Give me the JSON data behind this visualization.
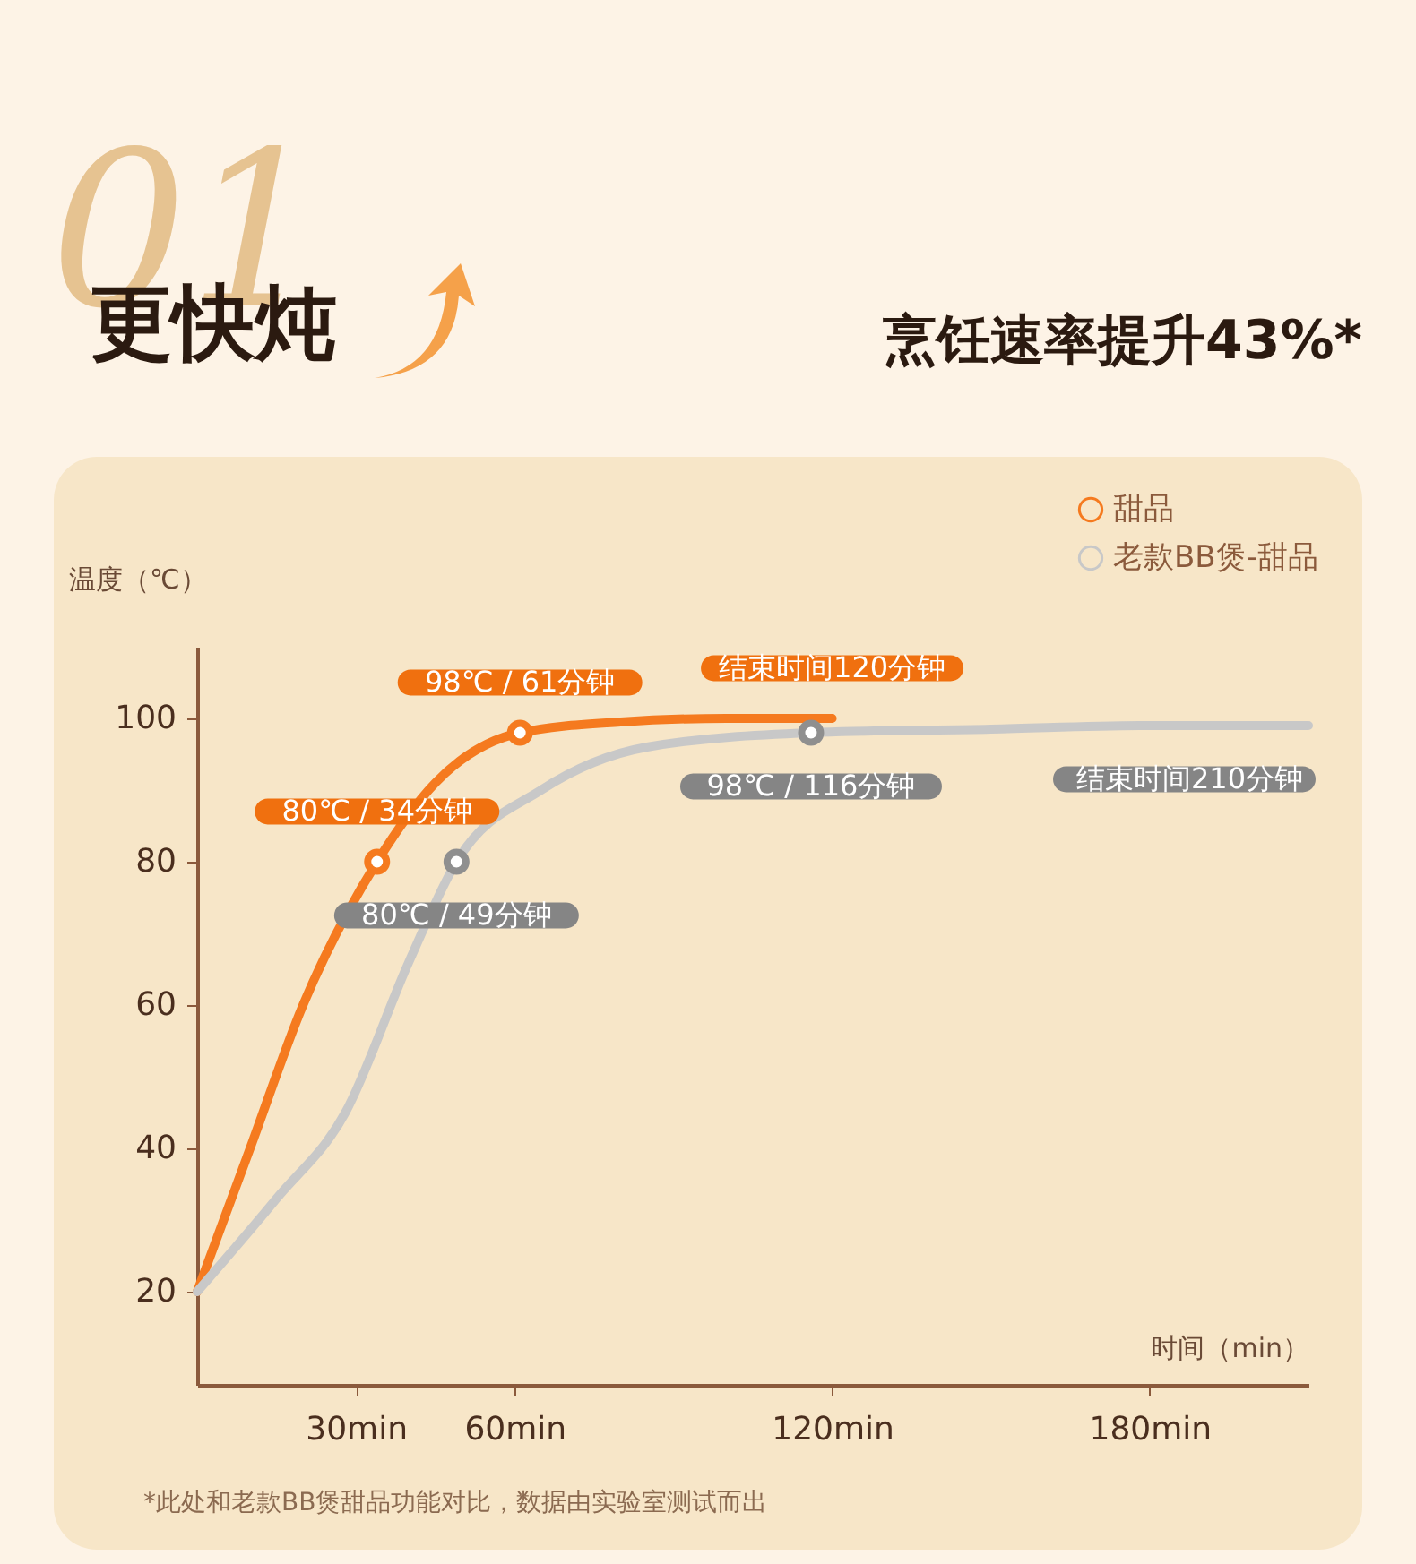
{
  "chart_data": {
    "type": "line",
    "title": "更快炖",
    "subtitle": "烹饪速率提升43%*",
    "xlabel": "时间（min）",
    "ylabel": "温度（℃）",
    "xlim": [
      0,
      210
    ],
    "xticks": [
      {
        "value": 30,
        "label": "30min"
      },
      {
        "value": 60,
        "label": "60min"
      },
      {
        "value": 120,
        "label": "120min"
      },
      {
        "value": 180,
        "label": "180min"
      }
    ],
    "ylim": [
      7,
      110
    ],
    "yticks": [
      20,
      40,
      60,
      80,
      100
    ],
    "legend": "top right",
    "series": [
      {
        "name": "甜品",
        "color": "#f57a1f",
        "x": [
          0,
          10,
          20,
          34,
          45,
          61,
          80,
          100,
          120
        ],
        "values": [
          20,
          40,
          60,
          80,
          91,
          98,
          99.5,
          100,
          100
        ]
      },
      {
        "name": "老款BB煲-甜品",
        "color": "#c8c8c8",
        "x": [
          0,
          15,
          28,
          40,
          49,
          65,
          85,
          116,
          150,
          180,
          210
        ],
        "values": [
          20,
          33,
          45,
          66,
          80,
          90,
          96,
          98,
          98.5,
          99,
          99
        ]
      },
      {
        "type": "scatter",
        "marker": "circle",
        "color": "#f57a1f",
        "x": [
          34,
          61
        ],
        "values": [
          80,
          98
        ]
      },
      {
        "type": "scatter",
        "marker": "circle",
        "color": "#8f8f8f",
        "x": [
          49,
          116
        ],
        "values": [
          80,
          98
        ]
      }
    ],
    "annotations": [
      "01",
      {
        "text": "80℃ / 34分钟",
        "x": 34,
        "y": 80
      },
      {
        "text": "98℃ / 61分钟",
        "x": 61,
        "y": 98
      },
      {
        "text": "结束时间120分钟",
        "x": 120,
        "y": 100
      },
      {
        "text": "80℃ / 49分钟",
        "x": 49,
        "y": 80
      },
      {
        "text": "98℃ / 116分钟",
        "x": 116,
        "y": 98
      },
      {
        "text": "结束时间210分钟",
        "x": 210,
        "y": 99
      },
      "*此处和老款BB煲甜品功能对比，数据由实验室测试而出"
    ]
  }
}
